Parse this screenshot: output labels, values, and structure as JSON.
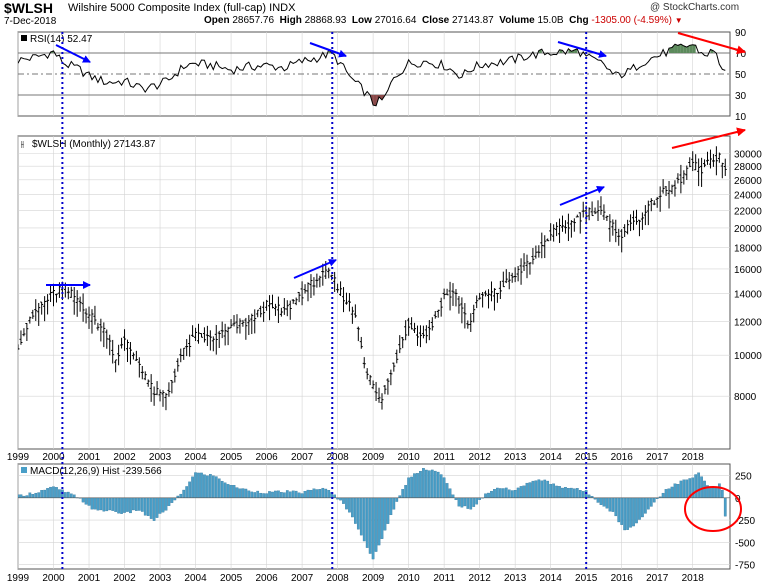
{
  "header": {
    "symbol": "$WLSH",
    "name": "Wilshire 5000 Composite Index (full-cap)",
    "exchange": "INDX",
    "source": "@ StockCharts.com",
    "date": "7-Dec-2018",
    "open_label": "Open",
    "open": "28657.76",
    "high_label": "High",
    "high": "28868.93",
    "low_label": "Low",
    "low": "27016.64",
    "close_label": "Close",
    "close": "27143.87",
    "volume_label": "Volume",
    "volume": "15.0B",
    "chg_label": "Chg",
    "chg": "-1305.00 (-4.59%)"
  },
  "colors": {
    "price_bar": "#000000",
    "rsi_line": "#000000",
    "rsi_overbought_fill": "#5c8a5c",
    "rsi_oversold_fill": "#8b4a4a",
    "macd_hist": "#4a9fc8",
    "vline": "#0000cc",
    "blue_arrow": "#0000ff",
    "red_arrow": "#ff0000",
    "ellipse": "#ff0000",
    "grid": "#d4d4d4"
  },
  "chart_data": [
    {
      "type": "line",
      "panel": "rsi",
      "title": "RSI(14) 52.47",
      "indicator": "RSI(14)",
      "last_value": 52.47,
      "ylim": [
        10,
        90
      ],
      "reference_lines": [
        70,
        50,
        30
      ],
      "yticks": [
        "90",
        "70",
        "50",
        "30",
        "10"
      ],
      "x": [
        1999.0,
        1999.5,
        2000.0,
        2000.3,
        2000.7,
        2001.0,
        2001.5,
        2002.0,
        2002.5,
        2002.8,
        2003.2,
        2003.7,
        2004.0,
        2004.5,
        2005.0,
        2005.5,
        2006.0,
        2006.5,
        2007.0,
        2007.5,
        2007.8,
        2008.0,
        2008.4,
        2008.8,
        2009.0,
        2009.3,
        2009.6,
        2010.0,
        2010.5,
        2011.0,
        2011.5,
        2011.8,
        2012.2,
        2012.8,
        2013.3,
        2013.8,
        2014.3,
        2014.8,
        2015.0,
        2015.5,
        2015.8,
        2016.2,
        2016.6,
        2017.0,
        2017.5,
        2018.0,
        2018.3,
        2018.6,
        2018.8,
        2018.93
      ],
      "values": [
        63,
        66,
        71,
        60,
        55,
        48,
        42,
        43,
        36,
        38,
        43,
        58,
        60,
        58,
        54,
        57,
        58,
        56,
        62,
        66,
        70,
        63,
        45,
        32,
        22,
        25,
        47,
        60,
        62,
        58,
        48,
        56,
        60,
        62,
        67,
        70,
        71,
        72,
        66,
        59,
        48,
        52,
        62,
        67,
        74,
        78,
        68,
        72,
        58,
        52
      ]
    },
    {
      "type": "bar",
      "panel": "price",
      "title": "$WLSH (Monthly) 27143.87",
      "series_name": "$WLSH (Monthly)",
      "last_value": 27143.87,
      "yscale": "log",
      "ylim": [
        6000,
        33000
      ],
      "yticks": [
        "30000",
        "28000",
        "26000",
        "24000",
        "22000",
        "20000",
        "18000",
        "16000",
        "14000",
        "12000",
        "10000",
        "8000"
      ],
      "x": [
        1999.0,
        1999.5,
        2000.0,
        2000.25,
        2000.7,
        2001.0,
        2001.5,
        2001.75,
        2002.0,
        2002.5,
        2002.8,
        2003.2,
        2003.6,
        2004.0,
        2004.5,
        2005.0,
        2005.5,
        2006.0,
        2006.5,
        2007.0,
        2007.5,
        2007.8,
        2008.0,
        2008.5,
        2008.8,
        2009.2,
        2009.5,
        2010.0,
        2010.3,
        2010.6,
        2011.0,
        2011.3,
        2011.7,
        2012.0,
        2012.5,
        2013.0,
        2013.5,
        2014.0,
        2014.5,
        2015.0,
        2015.4,
        2015.7,
        2016.0,
        2016.3,
        2016.7,
        2017.0,
        2017.5,
        2018.0,
        2018.2,
        2018.5,
        2018.75,
        2018.93
      ],
      "values": [
        10600,
        12700,
        14000,
        14500,
        13500,
        12500,
        11200,
        9800,
        10800,
        9300,
        8200,
        8000,
        10000,
        11100,
        10900,
        11600,
        12000,
        13100,
        12700,
        14000,
        15400,
        15600,
        14400,
        12500,
        9200,
        7700,
        9000,
        11900,
        11100,
        11400,
        13800,
        14000,
        11800,
        13700,
        14100,
        15600,
        16800,
        19400,
        20300,
        21800,
        22100,
        20200,
        19300,
        20600,
        21800,
        23800,
        25000,
        28500,
        27000,
        28800,
        29800,
        27140
      ]
    },
    {
      "type": "bar",
      "panel": "macd",
      "title": "MACD(12,26,9) Hist -239.566",
      "indicator": "MACD(12,26,9) Hist",
      "last_value": -239.566,
      "ylim": [
        -800,
        380
      ],
      "yticks": [
        "250",
        "0",
        "-250",
        "-500",
        "-750"
      ],
      "x": [
        1999.0,
        1999.5,
        2000.0,
        2000.5,
        2000.8,
        2001.2,
        2001.6,
        2002.0,
        2002.4,
        2002.8,
        2003.2,
        2003.6,
        2004.0,
        2004.5,
        2005.0,
        2005.5,
        2006.0,
        2006.5,
        2007.0,
        2007.5,
        2007.8,
        2008.2,
        2008.6,
        2009.0,
        2009.3,
        2009.6,
        2010.0,
        2010.4,
        2010.8,
        2011.0,
        2011.4,
        2011.8,
        2012.2,
        2012.6,
        2013.0,
        2013.4,
        2013.8,
        2014.2,
        2014.6,
        2015.0,
        2015.4,
        2015.8,
        2016.1,
        2016.5,
        2016.9,
        2017.2,
        2017.6,
        2018.0,
        2018.2,
        2018.4,
        2018.6,
        2018.8,
        2018.93
      ],
      "values": [
        20,
        60,
        120,
        40,
        -30,
        -150,
        -140,
        -180,
        -130,
        -260,
        -120,
        50,
        280,
        250,
        140,
        80,
        60,
        70,
        60,
        110,
        70,
        -80,
        -350,
        -700,
        -400,
        -100,
        220,
        330,
        300,
        220,
        -80,
        -130,
        60,
        120,
        80,
        180,
        200,
        130,
        110,
        70,
        -60,
        -180,
        -380,
        -250,
        -60,
        80,
        170,
        230,
        280,
        140,
        100,
        180,
        -240
      ]
    }
  ],
  "x_axis": {
    "ticks": [
      "1999",
      "2000",
      "2001",
      "2002",
      "2003",
      "2004",
      "2005",
      "2006",
      "2007",
      "2008",
      "2009",
      "2010",
      "2011",
      "2012",
      "2013",
      "2014",
      "2015",
      "2016",
      "2017",
      "2018"
    ]
  },
  "annotations": {
    "vertical_lines_at": [
      2000.25,
      2007.85,
      2015.0
    ]
  }
}
